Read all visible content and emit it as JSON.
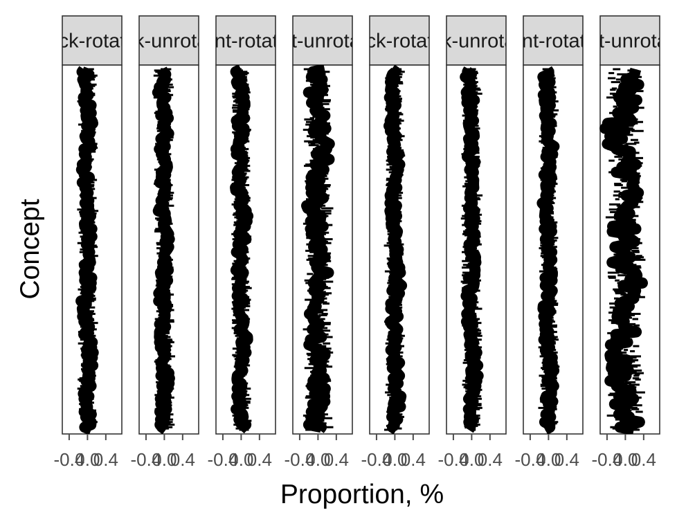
{
  "chart_data": {
    "type": "line",
    "xlabel": "Proportion, %",
    "ylabel": "Concept",
    "xlim": [
      -0.55,
      0.75
    ],
    "x_ticks": [
      -0.4,
      0.0,
      0.4
    ],
    "x_tick_labels": [
      "-0.4",
      "0.0",
      "0.4"
    ],
    "grid": false,
    "legend": "none",
    "color": "#000000",
    "panels": [
      {
        "strip": "back-rotated",
        "center": 0.0,
        "spread": 0.09,
        "seed": 11
      },
      {
        "strip": "back-unrotated",
        "center": 0.0,
        "spread": 0.09,
        "seed": 23
      },
      {
        "strip": "front-rotated",
        "center": 0.0,
        "spread": 0.09,
        "seed": 37
      },
      {
        "strip": "front-unrotated",
        "center": 0.0,
        "spread": 0.17,
        "seed": 41
      },
      {
        "strip": "back-rotated",
        "center": 0.0,
        "spread": 0.09,
        "seed": 53
      },
      {
        "strip": "back-unrotated",
        "center": 0.0,
        "spread": 0.09,
        "seed": 67
      },
      {
        "strip": "front-rotated",
        "center": 0.0,
        "spread": 0.09,
        "seed": 79
      },
      {
        "strip": "front-unrotated",
        "center": 0.0,
        "spread": 0.26,
        "seed": 83
      }
    ]
  }
}
